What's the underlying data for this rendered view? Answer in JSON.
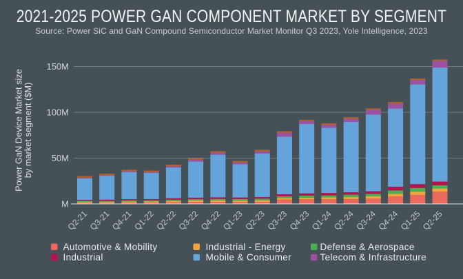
{
  "chart_data": {
    "type": "bar",
    "stacked": true,
    "title": "2021-2025 POWER GAN COMPONENT MARKET BY SEGMENT",
    "subtitle": "Source: Power SiC and GaN Compound Semiconductor Market Monitor Q3 2023, Yole Intelligence, 2023",
    "ylabel_line1": "Power GaN Device Market size",
    "ylabel_line2": "by market segment ($M)",
    "unit": "$M",
    "ylim": [
      0,
      168
    ],
    "grid": true,
    "legend_position": "bottom",
    "yticks": [
      {
        "label": "M",
        "value": 0
      },
      {
        "label": "50M",
        "value": 50
      },
      {
        "label": "100M",
        "value": 100
      },
      {
        "label": "150M",
        "value": 150
      }
    ],
    "categories": [
      "Q2-21",
      "Q3-21",
      "Q4-21",
      "Q1-22",
      "Q2-22",
      "Q3-22",
      "Q4-22",
      "Q1-23",
      "Q2-23",
      "Q3-23",
      "Q4-23",
      "Q1-24",
      "Q2-24",
      "Q3-24",
      "Q4-24",
      "Q1-25",
      "Q2-25"
    ],
    "series": [
      {
        "name": "Automotive & Mobility",
        "color": "#e96a5c",
        "values": [
          1.4,
          1.2,
          1.4,
          1.5,
          1.8,
          2.3,
          2.3,
          2.1,
          2.3,
          4.7,
          5.0,
          5.0,
          5.3,
          5.7,
          8.3,
          9.8,
          13.5
        ]
      },
      {
        "name": "Industrial - Energy",
        "color": "#f2a53c",
        "values": [
          0.9,
          1.2,
          1.2,
          1.2,
          1.4,
          1.5,
          1.6,
          1.5,
          1.7,
          1.8,
          1.8,
          2.1,
          2.2,
          2.6,
          2.8,
          3.6,
          3.4
        ]
      },
      {
        "name": "Defense & Aerospace",
        "color": "#4caf55",
        "values": [
          0.9,
          0.9,
          1.2,
          1.2,
          1.4,
          1.4,
          1.6,
          1.7,
          1.7,
          1.8,
          2.2,
          2.2,
          2.6,
          2.6,
          3.6,
          4.1,
          3.4
        ]
      },
      {
        "name": "Industrial",
        "color": "#b5134f",
        "values": [
          1.1,
          1.4,
          1.4,
          1.4,
          1.5,
          1.6,
          1.7,
          1.7,
          1.8,
          2.2,
          2.5,
          2.6,
          2.6,
          2.9,
          4.1,
          4.1,
          4.1
        ]
      },
      {
        "name": "Mobile & Consumer",
        "color": "#64a4db",
        "values": [
          23.6,
          26.1,
          29.6,
          28.7,
          33.7,
          39.5,
          46.5,
          36.3,
          47.6,
          62.9,
          75.7,
          71.3,
          76.8,
          83.8,
          85.3,
          108.8,
          124.4
        ]
      },
      {
        "name": "Telecom & Infrastructure",
        "color": "#9c539f",
        "values": [
          2.3,
          2.1,
          2.4,
          2.4,
          3.0,
          3.3,
          3.8,
          3.5,
          3.9,
          5.8,
          4.5,
          4.7,
          5.0,
          6.6,
          7.0,
          6.5,
          8.7
        ]
      }
    ],
    "legend_columns": [
      [
        0,
        3
      ],
      [
        1,
        4
      ],
      [
        2,
        5
      ]
    ]
  },
  "theme": {
    "background": "#465057",
    "title_color": "#f2f5f6",
    "subtitle_color": "#c9cfd3",
    "grid_color": "rgba(255,255,255,0.26)",
    "axis_color": "rgba(255,255,255,0.42)",
    "ytick_color": "#ced5d8",
    "xtick_color": "#c3cacd",
    "ylabel_color": "#dce1e4",
    "legend_text_color": "#e7ebed",
    "bar_cap_color": "#b2641f"
  }
}
